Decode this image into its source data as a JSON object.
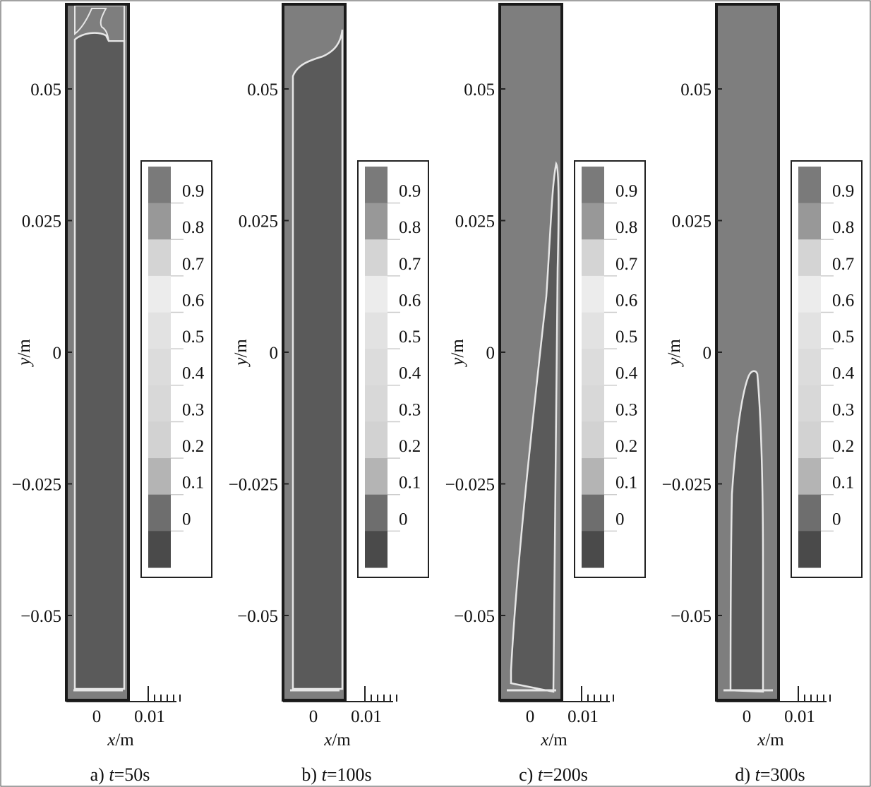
{
  "figure": {
    "colors": {
      "liquid": "#5a5a5a",
      "vapor": "#7e7e7e",
      "interface": "#e6e6e6",
      "frame": "#1a1a1a"
    },
    "levels": [
      0,
      0.1,
      0.2,
      0.3,
      0.4,
      0.5,
      0.6,
      0.7,
      0.8,
      0.9
    ],
    "level_colors": [
      "#4a4a4a",
      "#6e6e6e",
      "#b4b4b4",
      "#d2d2d2",
      "#d8d8d8",
      "#dcdcdc",
      "#e2e2e2",
      "#ececec",
      "#d4d4d4",
      "#989898",
      "#7a7a7a"
    ],
    "panels": [
      {
        "id": "a",
        "caption_prefix": "a) ",
        "caption_t": "t",
        "caption_suffix": "=50s"
      },
      {
        "id": "b",
        "caption_prefix": "b) ",
        "caption_t": "t",
        "caption_suffix": "=100s"
      },
      {
        "id": "c",
        "caption_prefix": "c) ",
        "caption_t": "t",
        "caption_suffix": "=200s"
      },
      {
        "id": "d",
        "caption_prefix": "d) ",
        "caption_t": "t",
        "caption_suffix": "=300s"
      }
    ]
  },
  "chart_data": [
    {
      "type": "heatmap",
      "panel": "a",
      "time_s": 50,
      "xlabel_var": "x",
      "xlabel_unit": "/m",
      "ylabel_var": "y",
      "ylabel_unit": "/m",
      "x_ticks": [
        "0",
        "0.01"
      ],
      "y_ticks": [
        "0.05",
        "0.025",
        "0",
        "−0.025",
        "−0.05"
      ],
      "legend_labels": [
        "0.9",
        "0.8",
        "0.7",
        "0.6",
        "0.5",
        "0.4",
        "0.3",
        "0.2",
        "0.1",
        "0"
      ],
      "contour": "vapor pocket only at top (y ≈ 0.06 to 0.066 m); liquid column fills the rest"
    },
    {
      "type": "heatmap",
      "panel": "b",
      "time_s": 100,
      "xlabel_var": "x",
      "xlabel_unit": "/m",
      "ylabel_var": "y",
      "ylabel_unit": "/m",
      "x_ticks": [
        "0",
        "0.01"
      ],
      "y_ticks": [
        "0.05",
        "0.025",
        "0",
        "−0.025",
        "−0.05"
      ],
      "legend_labels": [
        "0.9",
        "0.8",
        "0.7",
        "0.6",
        "0.5",
        "0.4",
        "0.3",
        "0.2",
        "0.1",
        "0"
      ],
      "contour": "vapor region at top extending to y ≈ 0.055 m"
    },
    {
      "type": "heatmap",
      "panel": "c",
      "time_s": 200,
      "xlabel_var": "x",
      "xlabel_unit": "/m",
      "ylabel_var": "y",
      "ylabel_unit": "/m",
      "x_ticks": [
        "0",
        "0.01"
      ],
      "y_ticks": [
        "0.05",
        "0.025",
        "0",
        "−0.025",
        "−0.05"
      ],
      "legend_labels": [
        "0.9",
        "0.8",
        "0.7",
        "0.6",
        "0.5",
        "0.4",
        "0.3",
        "0.2",
        "0.1",
        "0"
      ],
      "contour": "liquid wedge, tip near y ≈ 0.036 m"
    },
    {
      "type": "heatmap",
      "panel": "d",
      "time_s": 300,
      "xlabel_var": "x",
      "xlabel_unit": "/m",
      "ylabel_var": "y",
      "ylabel_unit": "/m",
      "x_ticks": [
        "0",
        "0.01"
      ],
      "y_ticks": [
        "0.05",
        "0.025",
        "0",
        "−0.025",
        "−0.05"
      ],
      "legend_labels": [
        "0.9",
        "0.8",
        "0.7",
        "0.6",
        "0.5",
        "0.4",
        "0.3",
        "0.2",
        "0.1",
        "0"
      ],
      "contour": "liquid pocket at bottom, tip near y ≈ −0.003 m"
    }
  ]
}
